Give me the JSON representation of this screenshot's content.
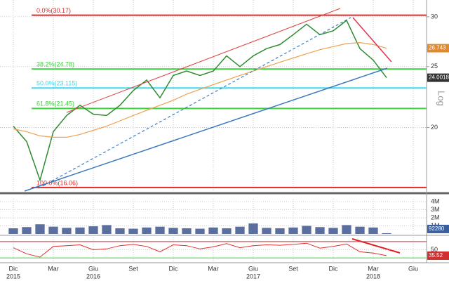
{
  "chart_data": {
    "type": "line",
    "log_scale": true,
    "log_label": "Log",
    "grid": true,
    "x": [
      "2015-12",
      "2016-01",
      "2016-02",
      "2016-03",
      "2016-04",
      "2016-05",
      "2016-06",
      "2016-07",
      "2016-08",
      "2016-09",
      "2016-10",
      "2016-11",
      "2016-12",
      "2017-01",
      "2017-02",
      "2017-03",
      "2017-04",
      "2017-05",
      "2017-06",
      "2017-07",
      "2017-08",
      "2017-09",
      "2017-10",
      "2017-11",
      "2017-12",
      "2018-01",
      "2018-02",
      "2018-03",
      "2018-04"
    ],
    "xlim": [
      "2015-11",
      "2018-07"
    ],
    "ylim": [
      15.85,
      31.9
    ],
    "yticks": [
      20,
      25,
      30
    ],
    "series": [
      {
        "color": "#2e8b2e",
        "values": [
          20.1,
          19.0,
          16.5,
          19.7,
          20.9,
          21.7,
          21.0,
          20.9,
          21.7,
          22.9,
          23.8,
          22.3,
          24.2,
          24.6,
          24.2,
          24.6,
          26.0,
          25.0,
          26.0,
          26.7,
          27.1,
          28.1,
          29.2,
          28.1,
          28.5,
          29.6,
          26.7,
          25.6,
          24.0018
        ]
      },
      {
        "color": "#f0a050",
        "values": [
          19.9,
          19.7,
          19.4,
          19.3,
          19.3,
          19.5,
          19.8,
          20.1,
          20.5,
          20.9,
          21.3,
          21.7,
          22.1,
          22.6,
          23.0,
          23.4,
          23.8,
          24.2,
          24.6,
          25.0,
          25.4,
          25.8,
          26.2,
          26.6,
          26.9,
          27.2,
          27.3,
          27.1,
          26.743
        ]
      }
    ],
    "levels": [
      {
        "value": 30.17,
        "label": "0.0%(30.17)",
        "color": "#e02828"
      },
      {
        "value": 24.78,
        "label": "38.2%(24.78)",
        "color": "#3ccf3c"
      },
      {
        "value": 23.115,
        "label": "50.0%(23.115)",
        "color": "#3fd8e8"
      },
      {
        "value": 21.45,
        "label": "61.8%(21.45)",
        "color": "#3ccf3c"
      },
      {
        "value": 16.06,
        "label": "100.0%(16.06)",
        "color": "#e02828"
      }
    ],
    "volume": {
      "color": "#5b6f9e",
      "values": [
        700000,
        850000,
        1200000,
        900000,
        750000,
        800000,
        950000,
        1100000,
        700000,
        650000,
        800000,
        900000,
        750000,
        700000,
        650000,
        800000,
        700000,
        900000,
        1300000,
        750000,
        700000,
        800000,
        1000000,
        850000,
        750000,
        1100000,
        900000,
        800000,
        92280
      ],
      "ylim": [
        0,
        4360000
      ],
      "yticks": [
        {
          "value": 1000000,
          "label": "1M"
        },
        {
          "value": 2000000,
          "label": "2M"
        },
        {
          "value": 3000000,
          "label": "3M"
        },
        {
          "value": 4000000,
          "label": "4M"
        }
      ]
    },
    "rsi": {
      "color": "#e03030",
      "values": [
        55,
        40,
        32,
        58,
        60,
        62,
        50,
        52,
        60,
        63,
        58,
        45,
        62,
        60,
        52,
        57,
        65,
        55,
        60,
        62,
        61,
        63,
        66,
        54,
        58,
        64,
        45,
        42,
        35.52
      ],
      "ylim": [
        20,
        80
      ],
      "yticks": [
        50
      ],
      "bands": [
        {
          "value": 70,
          "color": "#e02828"
        },
        {
          "value": 30,
          "color": "#3ccf3c"
        }
      ]
    },
    "xticks": [
      {
        "value": "2015-12",
        "label": "Dic"
      },
      {
        "value": "2016-03",
        "label": "Mar"
      },
      {
        "value": "2016-06",
        "label": "Giu"
      },
      {
        "value": "2016-09",
        "label": "Set"
      },
      {
        "value": "2016-12",
        "label": "Dic"
      },
      {
        "value": "2017-03",
        "label": "Mar"
      },
      {
        "value": "2017-06",
        "label": "Giu"
      },
      {
        "value": "2017-09",
        "label": "Set"
      },
      {
        "value": "2017-12",
        "label": "Dic"
      },
      {
        "value": "2018-03",
        "label": "Mar"
      },
      {
        "value": "2018-06",
        "label": "Giu"
      }
    ],
    "years": [
      {
        "value": "2015-12",
        "label": "2015"
      },
      {
        "value": "2016-06",
        "label": "2016"
      },
      {
        "value": "2017-06",
        "label": "2017"
      },
      {
        "value": "2018-03",
        "label": "2018"
      }
    ]
  }
}
